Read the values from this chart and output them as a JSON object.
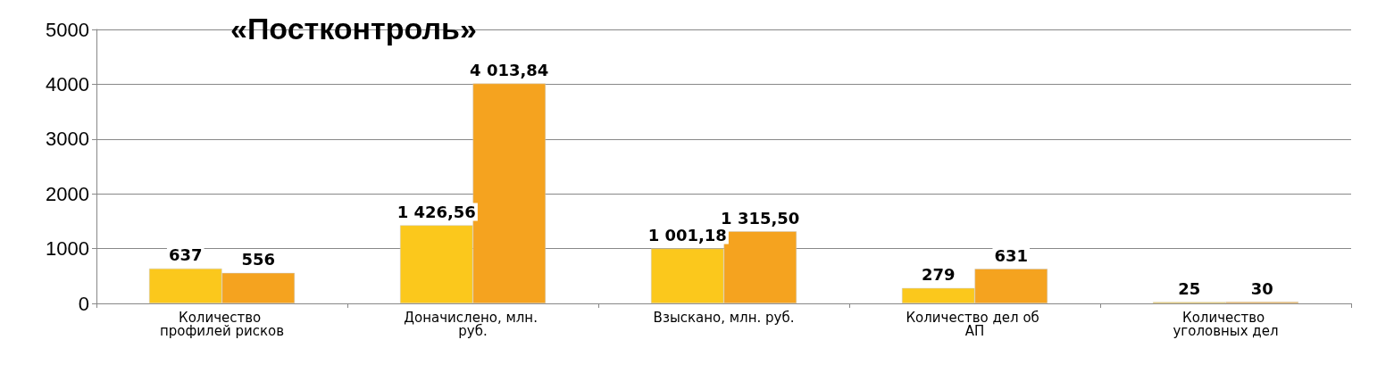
{
  "chart_data": {
    "type": "bar",
    "title": "«Постконтроль»",
    "categories": [
      "Количество профилей рисков",
      "Доначислено, млн. руб.",
      "Взыскано, млн. руб.",
      "Количество дел об АП",
      "Количество уголовных дел"
    ],
    "series": [
      {
        "color": "#fbc81c",
        "values": [
          637,
          1426.56,
          1001.18,
          279,
          25
        ],
        "value_labels": [
          "637",
          "1 426,56",
          "1 001,18",
          "279",
          "25"
        ]
      },
      {
        "color": "#f5a31f",
        "values": [
          556,
          4013.84,
          1315.5,
          631,
          30
        ],
        "value_labels": [
          "556",
          "4 013,84",
          "1 315,50",
          "631",
          "30"
        ]
      }
    ],
    "ylim": [
      0,
      5000
    ],
    "yticks": [
      0,
      1000,
      2000,
      3000,
      4000,
      5000
    ],
    "grid": "y"
  }
}
